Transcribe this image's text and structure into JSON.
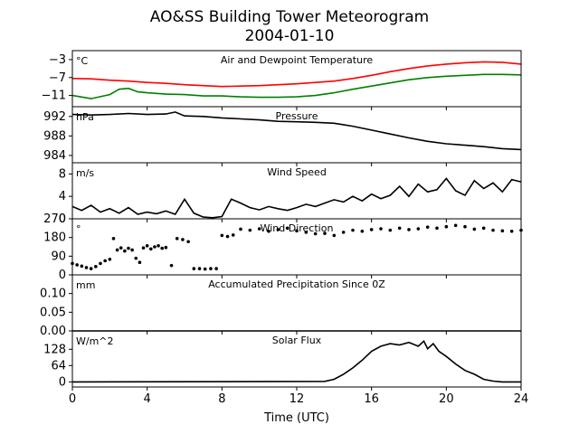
{
  "figure": {
    "title": "AO&SS Building Tower Meteorogram",
    "subtitle": "2004-01-10",
    "xlabel": "Time (UTC)"
  },
  "colors": {
    "axis": "#000000",
    "air_temperature": "#ff0000",
    "dewpoint": "#008000",
    "series": "#000000"
  },
  "chart_data": [
    {
      "type": "line",
      "title": "Air and Dewpoint Temperature",
      "unit": "°C",
      "xlim": [
        0,
        24
      ],
      "ylim": [
        -13.5,
        -1
      ],
      "yticks": [
        -3,
        -7,
        -11
      ],
      "series": [
        {
          "color": "#ff0000",
          "x": [
            0,
            1,
            2,
            3,
            4,
            5,
            6,
            7,
            8,
            9,
            10,
            11,
            12,
            13,
            14,
            15,
            16,
            17,
            18,
            19,
            20,
            21,
            22,
            23,
            24
          ],
          "values": [
            -7.2,
            -7.3,
            -7.6,
            -7.8,
            -8.1,
            -8.3,
            -8.6,
            -8.8,
            -9.0,
            -8.9,
            -8.8,
            -8.6,
            -8.4,
            -8.1,
            -7.8,
            -7.2,
            -6.5,
            -5.7,
            -5.0,
            -4.4,
            -4.0,
            -3.7,
            -3.5,
            -3.6,
            -4.0
          ]
        },
        {
          "color": "#008000",
          "x": [
            0,
            1,
            2,
            2.5,
            3,
            3.5,
            4,
            5,
            6,
            7,
            8,
            9,
            10,
            11,
            12,
            13,
            14,
            15,
            16,
            17,
            18,
            19,
            20,
            21,
            22,
            23,
            24
          ],
          "values": [
            -11.0,
            -11.7,
            -10.8,
            -9.6,
            -9.4,
            -10.2,
            -10.4,
            -10.7,
            -10.8,
            -11.1,
            -11.1,
            -11.3,
            -11.4,
            -11.4,
            -11.3,
            -11.0,
            -10.4,
            -9.6,
            -8.9,
            -8.2,
            -7.5,
            -7.0,
            -6.7,
            -6.5,
            -6.3,
            -6.3,
            -6.4
          ]
        }
      ]
    },
    {
      "type": "line",
      "title": "Pressure",
      "unit": "hPa",
      "xlim": [
        0,
        24
      ],
      "ylim": [
        982.5,
        994
      ],
      "yticks": [
        992,
        988,
        984
      ],
      "series": [
        {
          "color": "#000000",
          "x": [
            0,
            1,
            2,
            3,
            4,
            5,
            5.5,
            6,
            7,
            8,
            9,
            10,
            11,
            12,
            13,
            14,
            15,
            16,
            17,
            18,
            19,
            20,
            21,
            22,
            23,
            24
          ],
          "values": [
            992.4,
            992.3,
            992.4,
            992.6,
            992.4,
            992.5,
            992.9,
            992.1,
            992.0,
            991.7,
            991.5,
            991.3,
            991.0,
            990.9,
            990.8,
            990.6,
            990.0,
            989.2,
            988.4,
            987.6,
            986.9,
            986.4,
            986.1,
            985.8,
            985.4,
            985.2
          ]
        }
      ]
    },
    {
      "type": "line",
      "title": "Wind Speed",
      "unit": "m/s",
      "xlim": [
        0,
        24
      ],
      "ylim": [
        0,
        10
      ],
      "yticks": [
        8,
        4,
        0
      ],
      "series": [
        {
          "color": "#000000",
          "x": [
            0,
            0.5,
            1,
            1.5,
            2,
            2.5,
            3,
            3.5,
            4,
            4.5,
            5,
            5.5,
            6,
            6.5,
            7,
            7.5,
            8,
            8.5,
            9,
            9.5,
            10,
            10.5,
            11,
            11.5,
            12,
            12.5,
            13,
            13.5,
            14,
            14.5,
            15,
            15.5,
            16,
            16.5,
            17,
            17.5,
            18,
            18.5,
            19,
            19.5,
            20,
            20.5,
            21,
            21.5,
            22,
            22.5,
            23,
            23.5,
            24
          ],
          "values": [
            2.2,
            1.5,
            2.4,
            1.2,
            1.8,
            1.0,
            2.0,
            0.8,
            1.2,
            0.9,
            1.4,
            0.8,
            3.5,
            1.0,
            0.3,
            0.2,
            0.4,
            3.5,
            2.8,
            2.0,
            1.6,
            2.2,
            1.8,
            1.5,
            2.0,
            2.6,
            2.2,
            2.8,
            3.4,
            3.0,
            4.0,
            3.2,
            4.4,
            3.6,
            4.2,
            5.8,
            4.0,
            6.2,
            4.8,
            5.2,
            7.2,
            5.0,
            4.2,
            6.8,
            5.4,
            6.4,
            4.8,
            7.0,
            6.6
          ]
        }
      ]
    },
    {
      "type": "scatter",
      "title": "Wind Direction",
      "unit": "°",
      "xlim": [
        0,
        24
      ],
      "ylim": [
        0,
        270
      ],
      "yticks": [
        270,
        180,
        90,
        0
      ],
      "series": [
        {
          "color": "#000000",
          "x": [
            0,
            0.25,
            0.5,
            0.75,
            1,
            1.25,
            1.5,
            1.75,
            2,
            2.2,
            2.4,
            2.6,
            2.8,
            3,
            3.2,
            3.4,
            3.6,
            3.8,
            4,
            4.2,
            4.4,
            4.6,
            4.8,
            5,
            5.3,
            5.6,
            5.9,
            6.2,
            6.5,
            6.8,
            7.1,
            7.4,
            7.7,
            8,
            8.3,
            8.6,
            9,
            9.5,
            10,
            10.5,
            11,
            11.5,
            12,
            12.5,
            13,
            13.5,
            14,
            14.5,
            15,
            15.5,
            16,
            16.5,
            17,
            17.5,
            18,
            18.5,
            19,
            19.5,
            20,
            20.5,
            21,
            21.5,
            22,
            22.5,
            23,
            23.5,
            24
          ],
          "values": [
            55,
            48,
            42,
            35,
            30,
            40,
            55,
            68,
            75,
            175,
            120,
            130,
            115,
            128,
            120,
            80,
            60,
            130,
            140,
            125,
            135,
            140,
            128,
            132,
            45,
            175,
            170,
            160,
            30,
            30,
            28,
            30,
            30,
            190,
            185,
            192,
            220,
            215,
            222,
            210,
            218,
            225,
            212,
            205,
            198,
            200,
            190,
            205,
            215,
            210,
            218,
            222,
            215,
            225,
            218,
            222,
            230,
            225,
            232,
            238,
            232,
            220,
            225,
            215,
            212,
            210,
            215
          ]
        }
      ]
    },
    {
      "type": "line",
      "title": "Accumulated Precipitation Since 0Z",
      "unit": "mm",
      "xlim": [
        0,
        24
      ],
      "ylim": [
        0,
        0.15
      ],
      "yticks": [
        0.1,
        0.05,
        0.0
      ],
      "series": [
        {
          "color": "#000000",
          "x": [
            0,
            24
          ],
          "values": [
            0,
            0
          ]
        }
      ]
    },
    {
      "type": "line",
      "title": "Solar Flux",
      "unit": "W/m^2",
      "xlim": [
        0,
        24
      ],
      "ylim": [
        -20,
        200
      ],
      "yticks": [
        128,
        64,
        0
      ],
      "series": [
        {
          "color": "#000000",
          "x": [
            0,
            13.5,
            14,
            14.5,
            15,
            15.5,
            16,
            16.5,
            17,
            17.5,
            18,
            18.5,
            18.8,
            19,
            19.3,
            19.6,
            20,
            20.5,
            21,
            21.5,
            22,
            22.5,
            23,
            24
          ],
          "values": [
            0,
            2,
            10,
            30,
            55,
            85,
            120,
            140,
            150,
            145,
            155,
            140,
            160,
            130,
            150,
            120,
            100,
            70,
            45,
            30,
            10,
            3,
            0,
            0
          ]
        }
      ]
    }
  ],
  "x_axis": {
    "ticks": [
      0,
      4,
      8,
      12,
      16,
      20,
      24
    ]
  }
}
